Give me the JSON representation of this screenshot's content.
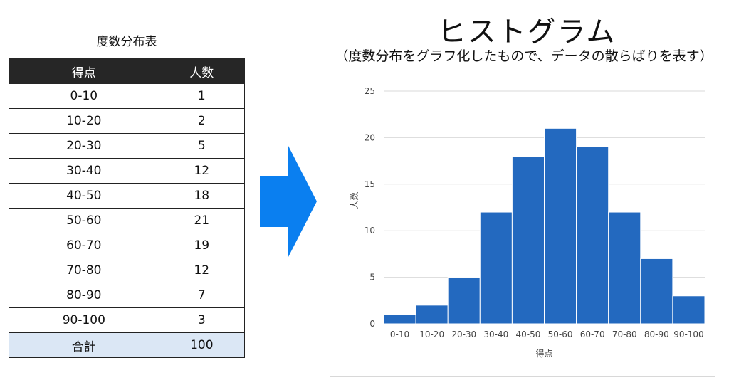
{
  "table": {
    "title": "度数分布表",
    "headers": [
      "得点",
      "人数"
    ],
    "rows": [
      [
        "0-10",
        "1"
      ],
      [
        "10-20",
        "2"
      ],
      [
        "20-30",
        "5"
      ],
      [
        "30-40",
        "12"
      ],
      [
        "40-50",
        "18"
      ],
      [
        "50-60",
        "21"
      ],
      [
        "60-70",
        "19"
      ],
      [
        "70-80",
        "12"
      ],
      [
        "80-90",
        "7"
      ],
      [
        "90-100",
        "3"
      ]
    ],
    "total": [
      "合計",
      "100"
    ]
  },
  "arrow": {
    "icon": "right-arrow-icon",
    "color": "#0a7ff0"
  },
  "heading": {
    "title": "ヒストグラム",
    "subtitle": "（度数分布をグラフ化したもので、データの散らばりを表す）"
  },
  "chart_data": {
    "type": "bar",
    "categories": [
      "0-10",
      "10-20",
      "20-30",
      "30-40",
      "40-50",
      "50-60",
      "60-70",
      "70-80",
      "80-90",
      "90-100"
    ],
    "values": [
      1,
      2,
      5,
      12,
      18,
      21,
      19,
      12,
      7,
      3
    ],
    "xlabel": "得点",
    "ylabel": "人数",
    "ylim": [
      0,
      25
    ],
    "yticks": [
      0,
      5,
      10,
      15,
      20,
      25
    ],
    "grid": true,
    "bar_color": "#2369bf"
  }
}
